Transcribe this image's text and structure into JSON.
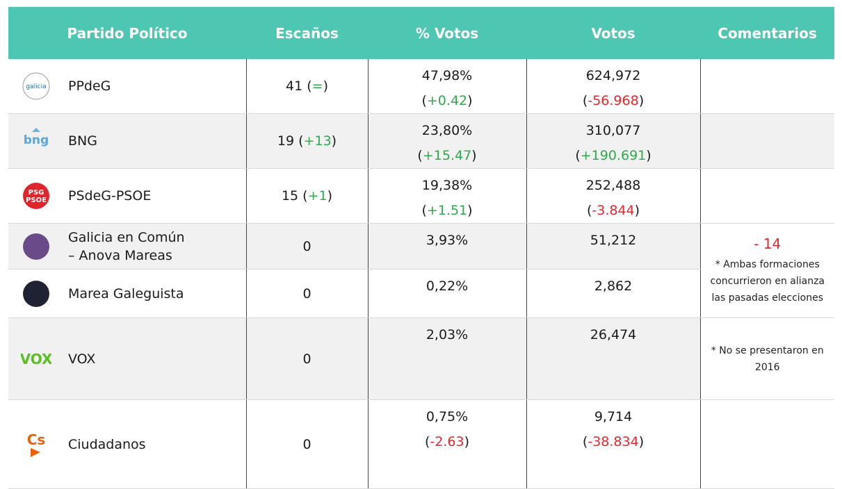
{
  "table": {
    "columns": [
      "Partido Político",
      "Escaños",
      "% Votos",
      "Votos",
      "Comentarios"
    ],
    "rows": [
      {
        "logo_text": [
          "galicia"
        ],
        "party": [
          "PPdeG"
        ],
        "seats": [
          {
            "text": "41 ("
          },
          {
            "text": "=",
            "color": "#2eaa4a"
          },
          {
            "text": ")"
          }
        ],
        "percent": [
          [
            {
              "text": "47,98%"
            }
          ],
          [
            {
              "text": "("
            },
            {
              "text": "+0.42",
              "color": "#2eaa4a"
            },
            {
              "text": ")"
            }
          ]
        ],
        "votes": [
          [
            {
              "text": "624,972"
            }
          ],
          [
            {
              "text": "("
            },
            {
              "text": "-56.968",
              "color": "#e8262a"
            },
            {
              "text": ")"
            }
          ]
        ]
      },
      {
        "logo_text": [
          "bng"
        ],
        "party": [
          "BNG"
        ],
        "seats": [
          {
            "text": "19 ("
          },
          {
            "text": "+13",
            "color": "#2eaa4a"
          },
          {
            "text": ")"
          }
        ],
        "percent": [
          [
            {
              "text": "23,80%"
            }
          ],
          [
            {
              "text": "("
            },
            {
              "text": "+15.47",
              "color": "#2eaa4a"
            },
            {
              "text": ")"
            }
          ]
        ],
        "votes": [
          [
            {
              "text": "310,077"
            }
          ],
          [
            {
              "text": "("
            },
            {
              "text": "+190.691",
              "color": "#2eaa4a"
            },
            {
              "text": ")"
            }
          ]
        ]
      },
      {
        "logo_text": [
          "PSG",
          "PSOE"
        ],
        "party": [
          "PSdeG-PSOE"
        ],
        "seats": [
          {
            "text": "15 ("
          },
          {
            "text": "+1",
            "color": "#2eaa4a"
          },
          {
            "text": ")"
          }
        ],
        "percent": [
          [
            {
              "text": "19,38%"
            }
          ],
          [
            {
              "text": "("
            },
            {
              "text": "+1.51",
              "color": "#2eaa4a"
            },
            {
              "text": ")"
            }
          ]
        ],
        "votes": [
          [
            {
              "text": "252,488"
            }
          ],
          [
            {
              "text": "("
            },
            {
              "text": "-3.844",
              "color": "#e8262a"
            },
            {
              "text": ")"
            }
          ]
        ]
      },
      {
        "party": [
          "Galicia en Común",
          "– Anova Mareas"
        ],
        "seats": [
          {
            "text": "0"
          }
        ],
        "percent": [
          [
            {
              "text": "3,93%"
            }
          ]
        ],
        "votes": [
          [
            {
              "text": "51,212"
            }
          ]
        ],
        "comment": {
          "rowspan": 2,
          "highlight": "- 14",
          "highlight_color": "#e8262a",
          "note": "* Ambas formaciones concurrieron en alianza las pasadas elecciones"
        }
      },
      {
        "party": [
          "Marea Galeguista"
        ],
        "seats": [
          {
            "text": "0"
          }
        ],
        "percent": [
          [
            {
              "text": "0,22%"
            }
          ]
        ],
        "votes": [
          [
            {
              "text": "2,862"
            }
          ]
        ]
      },
      {
        "logo_text": [
          "VOX"
        ],
        "party": [
          "VOX"
        ],
        "seats": [
          {
            "text": "0"
          }
        ],
        "percent": [
          [
            {
              "text": "2,03%"
            }
          ]
        ],
        "votes": [
          [
            {
              "text": "26,474"
            }
          ]
        ],
        "comment": {
          "rowspan": 1,
          "note": "* No se presentaron en 2016"
        }
      },
      {
        "logo_text": [
          "Cs"
        ],
        "party": [
          "Ciudadanos"
        ],
        "seats": [
          {
            "text": "0"
          }
        ],
        "percent": [
          [
            {
              "text": "0,75%"
            }
          ],
          [
            {
              "text": "("
            },
            {
              "text": "-2.63",
              "color": "#e8262a"
            },
            {
              "text": ")"
            }
          ]
        ],
        "votes": [
          [
            {
              "text": "9,714"
            }
          ],
          [
            {
              "text": "("
            },
            {
              "text": "-38.834",
              "color": "#e8262a"
            },
            {
              "text": ")"
            }
          ]
        ]
      }
    ]
  }
}
